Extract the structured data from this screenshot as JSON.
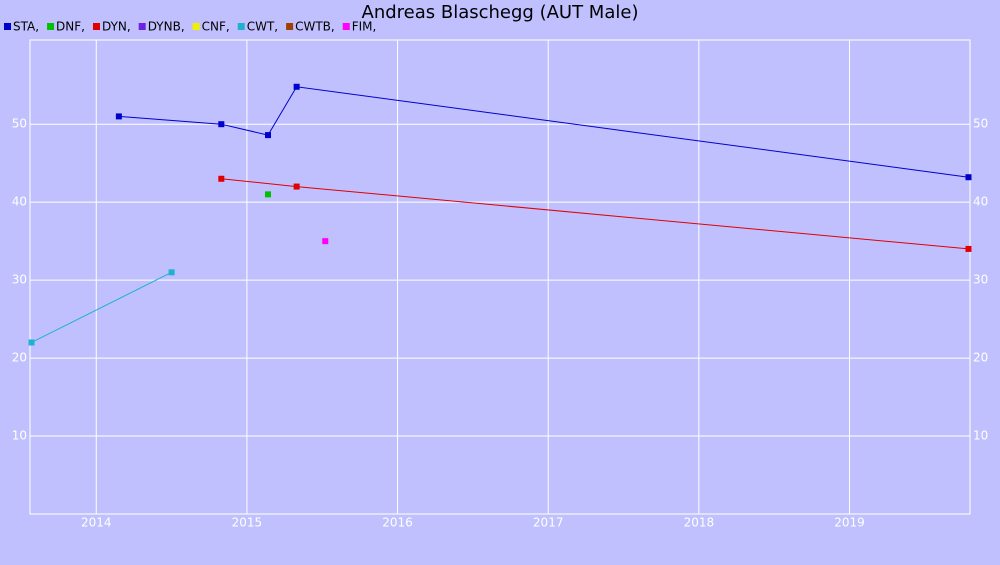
{
  "chart_data": {
    "type": "line",
    "title": "Andreas Blaschegg (AUT Male)",
    "xlim": [
      2013.56,
      2019.8
    ],
    "xticks": [
      2014,
      2015,
      2016,
      2017,
      2018,
      2019
    ],
    "ylim": [
      0,
      60.8
    ],
    "yticks": [
      10,
      20,
      30,
      40,
      50
    ],
    "grid": true,
    "series": [
      {
        "name": "STA,",
        "color": "#0000cc",
        "x": [
          2014.15,
          2014.83,
          2015.14,
          2015.33,
          2019.79
        ],
        "values": [
          51,
          50,
          48.6,
          54.8,
          43.2
        ]
      },
      {
        "name": "DNF,",
        "color": "#00c000",
        "x": [
          2015.14
        ],
        "values": [
          41
        ]
      },
      {
        "name": "DYN,",
        "color": "#e00000",
        "x": [
          2014.83,
          2015.33,
          2019.79
        ],
        "values": [
          43,
          42,
          34
        ]
      },
      {
        "name": "DYNB,",
        "color": "#7020e0",
        "x": [],
        "values": []
      },
      {
        "name": "CNF,",
        "color": "#f0f000",
        "x": [],
        "values": []
      },
      {
        "name": "CWT,",
        "color": "#20b0d0",
        "x": [
          2013.57,
          2014.5
        ],
        "values": [
          22,
          31
        ]
      },
      {
        "name": "CWTB,",
        "color": "#a04000",
        "x": [],
        "values": []
      },
      {
        "name": "FIM,",
        "color": "#ff00ff",
        "x": [
          2015.52
        ],
        "values": [
          35
        ]
      }
    ]
  }
}
